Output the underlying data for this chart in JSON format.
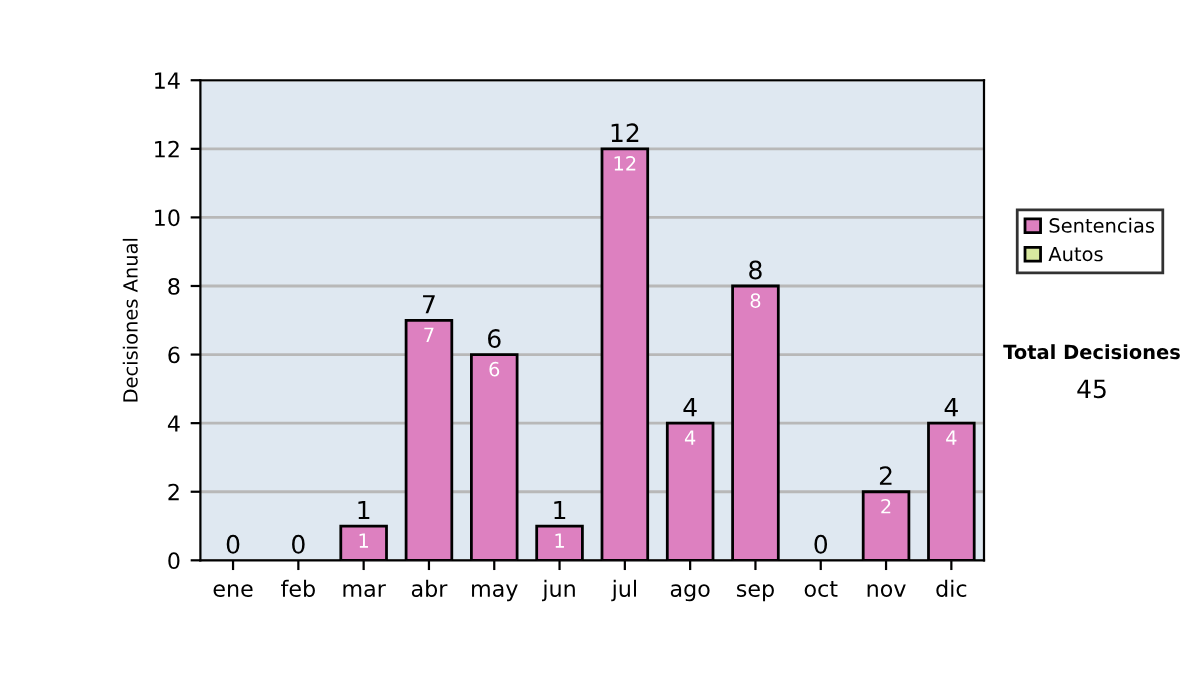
{
  "chart_data": {
    "type": "bar",
    "stacked": true,
    "ylabel": "Decisiones Anual",
    "categories": [
      "ene",
      "feb",
      "mar",
      "abr",
      "may",
      "jun",
      "jul",
      "ago",
      "sep",
      "oct",
      "nov",
      "dic"
    ],
    "series": [
      {
        "name": "Sentencias",
        "color": "#dd80c0",
        "values": [
          0,
          0,
          1,
          7,
          6,
          1,
          12,
          4,
          8,
          0,
          2,
          4
        ],
        "value_labels": [
          null,
          null,
          "1",
          "7",
          "6",
          "1",
          "12",
          "4",
          "8",
          null,
          "2",
          "4"
        ]
      },
      {
        "name": "Autos",
        "color": "#d8e8a0",
        "values": [
          0,
          0,
          0,
          0,
          0,
          0,
          0,
          0,
          0,
          0,
          0,
          0
        ]
      }
    ],
    "totals": [
      "0",
      "0",
      "1",
      "7",
      "6",
      "1",
      "12",
      "4",
      "8",
      "0",
      "2",
      "4"
    ],
    "ylim": [
      0,
      14
    ],
    "yticks": [
      0,
      2,
      4,
      6,
      8,
      10,
      12,
      14
    ],
    "grid": "y",
    "legend": "right",
    "annotations": [
      "Total Decisiones",
      "45"
    ]
  }
}
